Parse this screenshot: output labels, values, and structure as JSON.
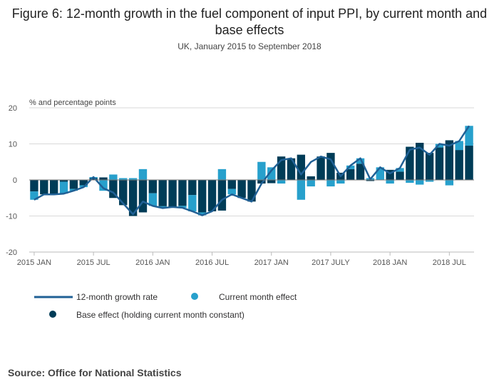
{
  "title": "Figure 6: 12-month growth in the fuel component of input PPI, by current month and base effects",
  "subtitle": "UK, January 2015 to September 2018",
  "source": "Source: Office for National Statistics",
  "colors": {
    "base": "#003c57",
    "current": "#27a0cc",
    "line": "#206095",
    "axis": "#bbbbbb",
    "grid": "#d9d9d9"
  },
  "chart_data": {
    "type": "bar",
    "stacked": true,
    "ylabel": "% and percentage points",
    "ylim": [
      -20,
      20
    ],
    "yticks": [
      20,
      10,
      0,
      -10,
      -20
    ],
    "xtick_labels": [
      {
        "index": 0,
        "label": "2015 JAN"
      },
      {
        "index": 6,
        "label": "2015 JUL"
      },
      {
        "index": 12,
        "label": "2016 JAN"
      },
      {
        "index": 18,
        "label": "2016 JUL"
      },
      {
        "index": 24,
        "label": "2017 JAN"
      },
      {
        "index": 30,
        "label": "2017 JULY"
      },
      {
        "index": 36,
        "label": "2018 JAN"
      },
      {
        "index": 42,
        "label": "2018 JUL"
      }
    ],
    "categories": [
      "2015-01",
      "2015-02",
      "2015-03",
      "2015-04",
      "2015-05",
      "2015-06",
      "2015-07",
      "2015-08",
      "2015-09",
      "2015-10",
      "2015-11",
      "2015-12",
      "2016-01",
      "2016-02",
      "2016-03",
      "2016-04",
      "2016-05",
      "2016-06",
      "2016-07",
      "2016-08",
      "2016-09",
      "2016-10",
      "2016-11",
      "2016-12",
      "2017-01",
      "2017-02",
      "2017-03",
      "2017-04",
      "2017-05",
      "2017-06",
      "2017-07",
      "2017-08",
      "2017-09",
      "2017-10",
      "2017-11",
      "2017-12",
      "2018-01",
      "2018-02",
      "2018-03",
      "2018-04",
      "2018-05",
      "2018-06",
      "2018-07",
      "2018-08",
      "2018-09"
    ],
    "series": [
      {
        "name": "Base effect (holding current month constant)",
        "kind": "bar",
        "values": [
          -3.2,
          -4.0,
          -4.0,
          -0.5,
          -2.5,
          -1.5,
          0.5,
          0.7,
          -5.0,
          -7.0,
          -10.0,
          -9.0,
          -3.7,
          -7.3,
          -7.5,
          -7.2,
          -4.2,
          -9.0,
          -8.7,
          -8.5,
          -2.5,
          -5.0,
          -6.0,
          -1.0,
          -0.9,
          6.5,
          6.0,
          7.0,
          1.0,
          6.5,
          7.5,
          2.0,
          3.0,
          4.5,
          -0.3,
          0.0,
          2.8,
          2.3,
          9.2,
          10.3,
          7.5,
          9.0,
          11.0,
          8.3,
          9.5
        ]
      },
      {
        "name": "Current month effect",
        "kind": "bar",
        "values": [
          -2.3,
          0.0,
          0.0,
          -3.3,
          -0.5,
          -0.5,
          0.3,
          -3.0,
          1.5,
          0.5,
          0.5,
          3.0,
          -3.5,
          -0.5,
          0.0,
          -0.5,
          -4.5,
          -0.8,
          0.0,
          3.0,
          -1.5,
          0.0,
          0.0,
          5.0,
          3.5,
          -1.0,
          0.0,
          -5.5,
          -1.8,
          0.0,
          -1.8,
          -1.0,
          1.0,
          1.5,
          0.5,
          3.5,
          -1.0,
          1.0,
          -0.8,
          -1.3,
          -0.5,
          1.0,
          -1.5,
          2.5,
          5.5
        ]
      },
      {
        "name": "12-month growth rate",
        "kind": "line",
        "values": [
          -5.5,
          -4.0,
          -4.0,
          -3.8,
          -3.0,
          -2.0,
          0.8,
          -2.3,
          -3.5,
          -6.5,
          -9.5,
          -6.0,
          -7.2,
          -7.8,
          -7.5,
          -7.7,
          -8.7,
          -9.8,
          -8.7,
          -5.5,
          -4.0,
          -5.0,
          -6.0,
          -1.0,
          2.6,
          5.5,
          6.0,
          1.5,
          5.0,
          6.5,
          5.7,
          1.0,
          4.0,
          6.0,
          0.2,
          3.5,
          1.8,
          3.3,
          8.4,
          9.0,
          7.0,
          10.0,
          9.5,
          10.8,
          15.0
        ]
      }
    ]
  }
}
